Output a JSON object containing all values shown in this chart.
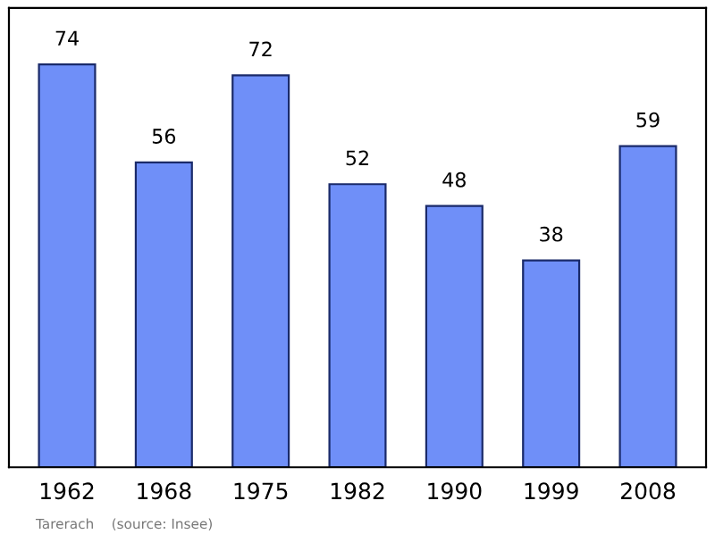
{
  "chart_data": {
    "type": "bar",
    "categories": [
      "1962",
      "1968",
      "1975",
      "1982",
      "1990",
      "1999",
      "2008"
    ],
    "values": [
      74,
      56,
      72,
      52,
      48,
      38,
      59
    ],
    "color": "#6f8ff8",
    "data_labels": true,
    "grid": false,
    "legend": false,
    "annotations": [
      "Tarerach    (source: Insee)"
    ]
  }
}
